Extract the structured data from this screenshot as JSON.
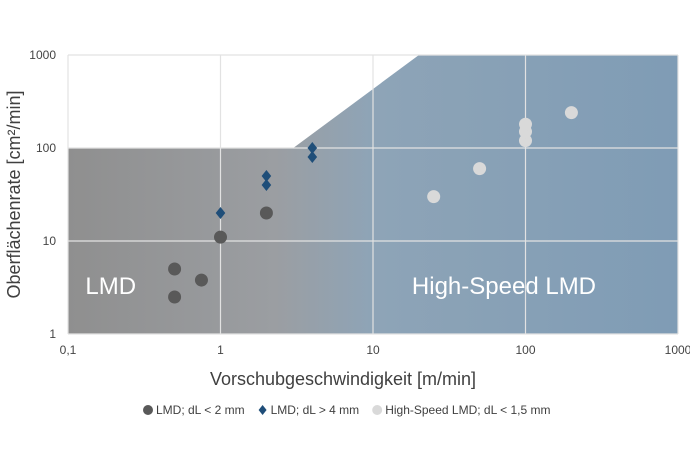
{
  "chart_data": {
    "type": "scatter",
    "xscale": "log",
    "yscale": "log",
    "xlim": [
      0.1,
      1000
    ],
    "ylim": [
      1,
      1000
    ],
    "xticks": [
      "0,1",
      "1",
      "10",
      "100",
      "1000"
    ],
    "yticks": [
      "1",
      "10",
      "100",
      "1000"
    ],
    "xlabel": "Vorschubgeschwindigkeit [m/min]",
    "ylabel": "Oberflächenrate [cm²/min]",
    "grid": true,
    "regions": [
      {
        "label": "LMD",
        "color": "#8f8f8f"
      },
      {
        "label": "High-Speed LMD",
        "color": "#7f9cb5"
      }
    ],
    "series": [
      {
        "name": "LMD; dL < 2 mm",
        "marker": "circle",
        "color": "#595959",
        "points": [
          [
            0.5,
            2.5
          ],
          [
            0.5,
            5
          ],
          [
            0.75,
            3.8
          ],
          [
            1,
            11
          ],
          [
            2,
            20
          ]
        ]
      },
      {
        "name": "LMD; dL > 4 mm",
        "marker": "diamond",
        "color": "#1f4e79",
        "points": [
          [
            1,
            20
          ],
          [
            2,
            40
          ],
          [
            2,
            50
          ],
          [
            4,
            80
          ],
          [
            4,
            100
          ]
        ]
      },
      {
        "name": "High-Speed LMD; dL < 1,5 mm",
        "marker": "circle",
        "color": "#d9d9d9",
        "points": [
          [
            25,
            30
          ],
          [
            50,
            60
          ],
          [
            100,
            120
          ],
          [
            100,
            150
          ],
          [
            100,
            180
          ],
          [
            200,
            240
          ]
        ]
      }
    ],
    "legend_position": "bottom"
  }
}
